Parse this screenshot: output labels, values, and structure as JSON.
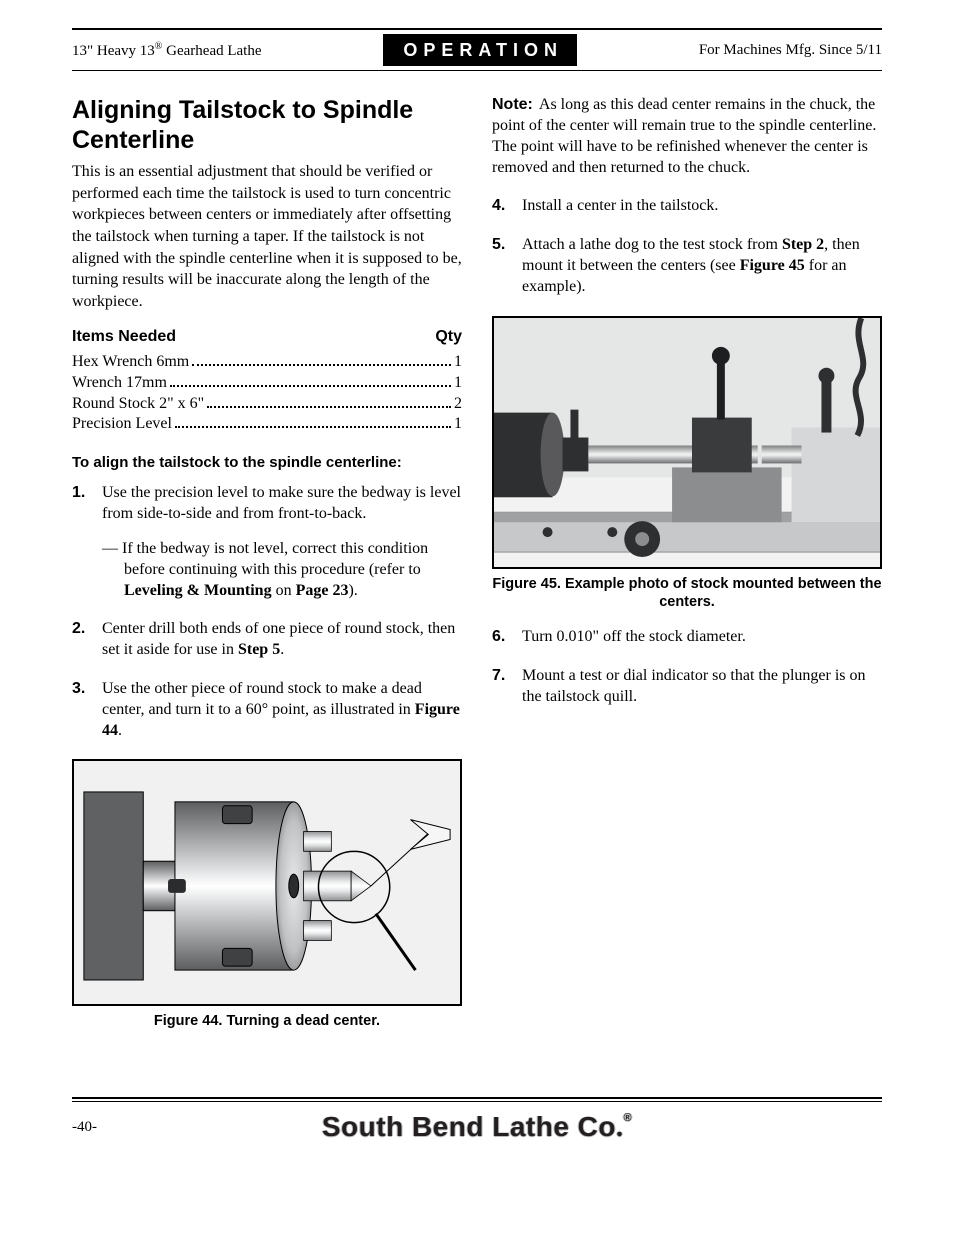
{
  "header": {
    "left_html": "13\" Heavy 13<sup>®</sup> Gearhead Lathe",
    "badge": "OPERATION",
    "right": "For Machines Mfg. Since 5/11"
  },
  "title": "Aligning Tailstock to Spindle Centerline",
  "intro": "This is an essential adjustment that should be verified or performed each time the tailstock is used to turn concentric workpieces between centers or immediately after offsetting the tailstock when turning a taper. If the tailstock is not aligned with the spindle centerline when it is supposed to be, turning results will be inaccurate along the length of the workpiece.",
  "items_header": {
    "left": "Items Needed",
    "right": "Qty"
  },
  "items": [
    {
      "name": "Hex Wrench 6mm",
      "qty": "1"
    },
    {
      "name": "Wrench 17mm",
      "qty": "1"
    },
    {
      "name": "Round Stock 2\" x 6\"",
      "qty": "2"
    },
    {
      "name": "Precision Level",
      "qty": "1"
    }
  ],
  "procedure_lead": "To align the tailstock to the spindle centerline:",
  "steps_left": [
    {
      "n": "1.",
      "html": "Use the precision level to make sure the bedway is level from side-to-side and from front-to-back.",
      "sub_html": "— If the bedway is not level, correct this condition before continuing with this procedure (refer to <b>Leveling &amp; Mounting</b> on <b>Page 23</b>)."
    },
    {
      "n": "2.",
      "html": "Center drill both ends of one piece of round stock, then set it aside for use in <b>Step 5</b>."
    },
    {
      "n": "3.",
      "html": "Use the other piece of round stock to make a dead center, and turn it to a 60° point, as illustrated in <b>Figure 44</b>."
    }
  ],
  "fig44_caption": "Figure 44. Turning a dead center.",
  "note": {
    "label": "Note:",
    "html": "As long as this dead center remains in the chuck, the point of the center will remain true to the spindle centerline. The point will have to be refinished whenever the center is removed and then returned to the chuck."
  },
  "steps_right_a": [
    {
      "n": "4.",
      "html": "Install a center in the tailstock."
    },
    {
      "n": "5.",
      "html": "Attach a lathe dog to the test stock from <b>Step 2</b>, then mount it between the centers (see <b>Figure 45</b> for an example)."
    }
  ],
  "fig45_caption": "Figure 45. Example photo of stock mounted between the centers.",
  "steps_right_b": [
    {
      "n": "6.",
      "html": "Turn 0.010\" off the stock diameter."
    },
    {
      "n": "7.",
      "html": "Mount a test or dial indicator so that the plunger is on the tailstock quill."
    }
  ],
  "footer": {
    "page": "-40-",
    "company_html": "South Bend Lathe Co<span style='font-family:Georgia,serif'>.</span><sup>®</sup>"
  },
  "fig44": {
    "bg": "#f1f1f2",
    "chuck_grad": [
      "#5b5d5f",
      "#9c9ea0",
      "#e5e6e7",
      "#ffffff",
      "#e5e6e7",
      "#9c9ea0",
      "#5b5d5f"
    ],
    "wall_color": "#5f6163",
    "bar_grad": [
      "#8f9193",
      "#e9eaeb",
      "#ffffff",
      "#e9eaeb",
      "#8f9193"
    ]
  },
  "fig45": {
    "colors": {
      "wall": "#e5e6e6",
      "pan": "#f2f2f2",
      "metal_dark": "#2e2f31",
      "metal_mid": "#8b8d8f",
      "metal_light": "#d6d7d8",
      "steel": "#c6c8c9"
    }
  }
}
